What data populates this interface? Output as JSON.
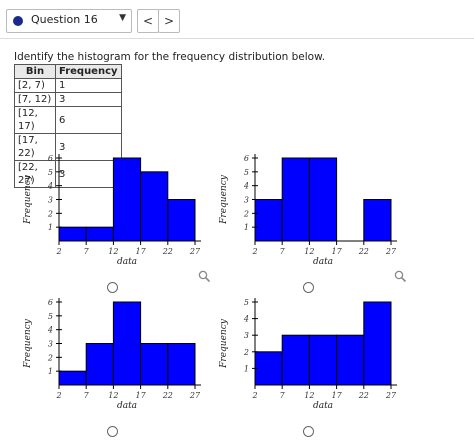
{
  "topbar": {
    "question_label": "Question 16",
    "caret": "▼",
    "prev": "<",
    "next": ">"
  },
  "instructions": "Identify the histogram for the frequency distribution below.",
  "table": {
    "headers": [
      "Bin",
      "Frequency"
    ],
    "rows": [
      [
        "[2, 7)",
        "1"
      ],
      [
        "[7, 12)",
        "3"
      ],
      [
        "[12, 17)",
        "6"
      ],
      [
        "[17, 22)",
        "3"
      ],
      [
        "[22, 27)",
        "3"
      ]
    ]
  },
  "chart_data": [
    {
      "type": "bar",
      "bin_edges": [
        2,
        7,
        12,
        17,
        22,
        27
      ],
      "values": [
        1,
        1,
        6,
        5,
        3
      ],
      "ylim": [
        0,
        6
      ],
      "yticks": [
        1,
        2,
        3,
        4,
        5,
        6
      ],
      "xticks": [
        2,
        7,
        12,
        17,
        22,
        27
      ],
      "xlabel": "data",
      "ylabel": "Frequency",
      "bar_color": "#0000ff"
    },
    {
      "type": "bar",
      "bin_edges": [
        2,
        7,
        12,
        17,
        22,
        27
      ],
      "values": [
        3,
        6,
        6,
        0,
        3
      ],
      "ylim": [
        0,
        6
      ],
      "yticks": [
        1,
        2,
        3,
        4,
        5,
        6
      ],
      "xticks": [
        2,
        7,
        12,
        17,
        22,
        27
      ],
      "xlabel": "data",
      "ylabel": "Frequency",
      "bar_color": "#0000ff"
    },
    {
      "type": "bar",
      "bin_edges": [
        2,
        7,
        12,
        17,
        22,
        27
      ],
      "values": [
        1,
        3,
        6,
        3,
        3
      ],
      "ylim": [
        0,
        6
      ],
      "yticks": [
        1,
        2,
        3,
        4,
        5,
        6
      ],
      "xticks": [
        2,
        7,
        12,
        17,
        22,
        27
      ],
      "xlabel": "data",
      "ylabel": "Frequency",
      "bar_color": "#0000ff"
    },
    {
      "type": "bar",
      "bin_edges": [
        2,
        7,
        12,
        17,
        22,
        27
      ],
      "values": [
        2,
        3,
        3,
        3,
        5
      ],
      "ylim": [
        0,
        5
      ],
      "yticks": [
        1,
        2,
        3,
        4,
        5
      ],
      "xticks": [
        2,
        7,
        12,
        17,
        22,
        27
      ],
      "xlabel": "data",
      "ylabel": "Frequency",
      "bar_color": "#0000ff"
    }
  ]
}
